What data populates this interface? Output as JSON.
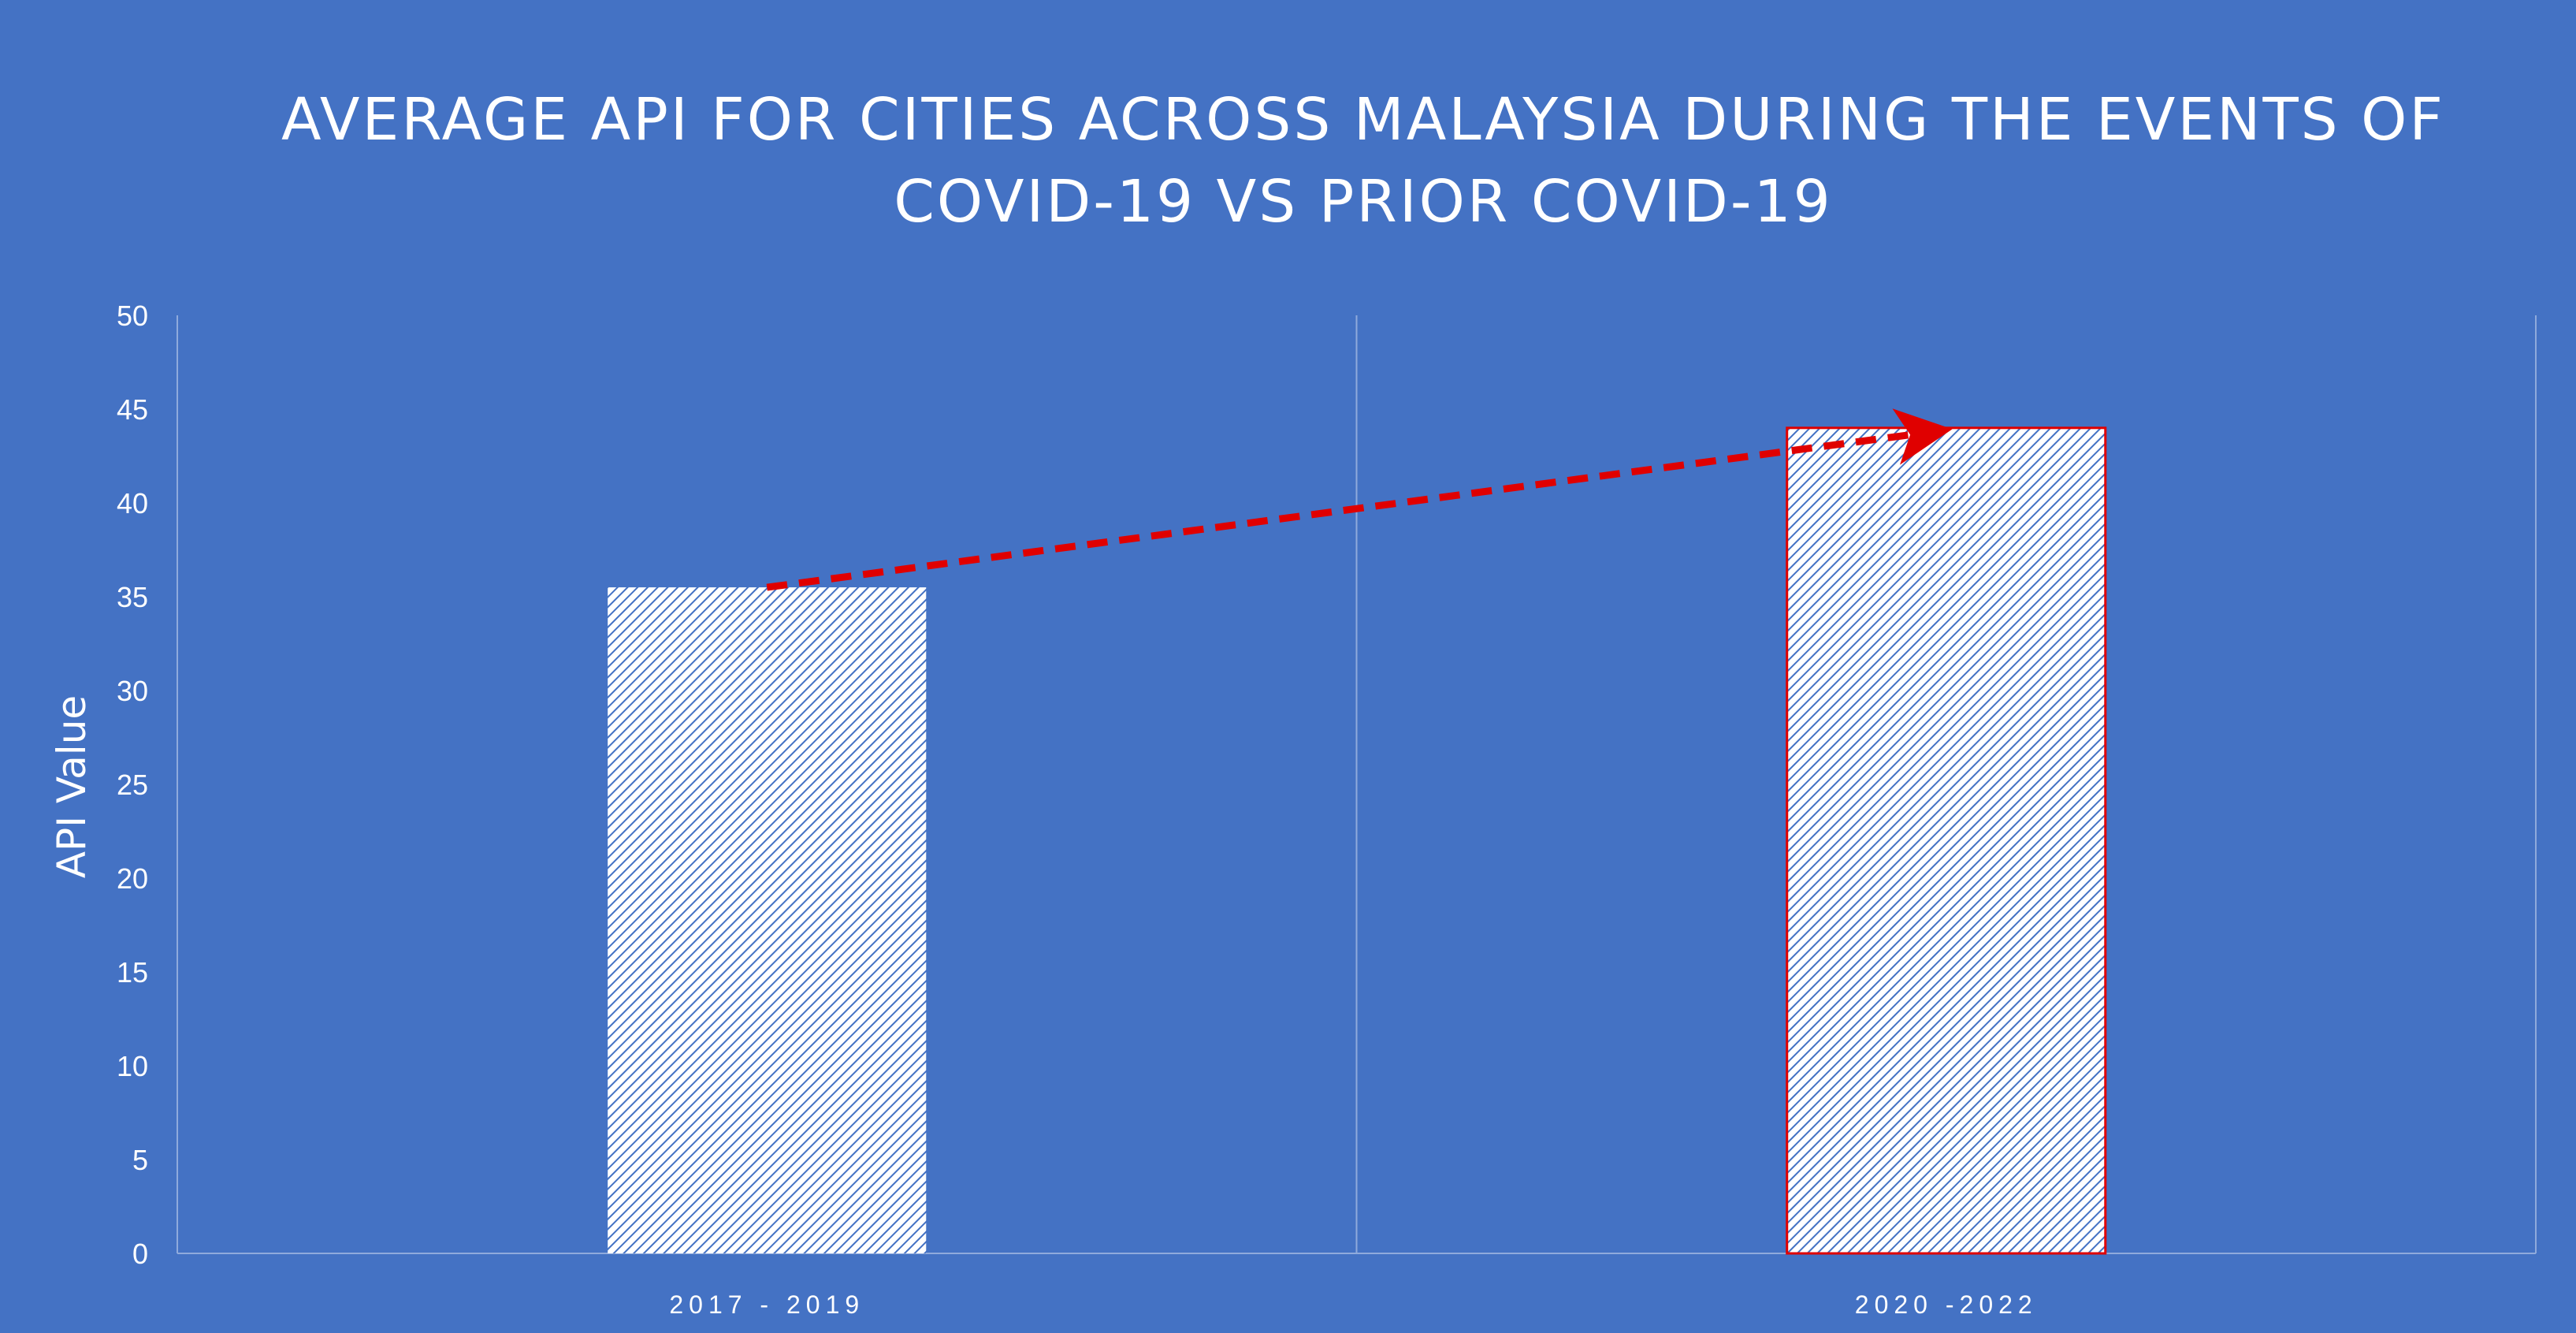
{
  "chart_data": {
    "type": "bar",
    "title": "AVERAGE API FOR CITIES ACROSS MALAYSIA DURING THE EVENTS OF COVID-19 VS PRIOR COVID-19",
    "xlabel": "",
    "ylabel": "API Value",
    "categories": [
      "2017 - 2019",
      "2020 -2022"
    ],
    "values": [
      35.5,
      44
    ],
    "ylim": [
      0,
      50
    ],
    "ytick_step": 5,
    "grid": "vertical category separators",
    "legend": "none",
    "bar_fill": "#ffffff",
    "hatch_color": "#4472C4",
    "highlight_outline": "#E00000",
    "annotation": {
      "type": "dashed-arrow",
      "from_category": "2017 - 2019",
      "to_category": "2020 -2022",
      "color": "#E00000"
    }
  },
  "colors": {
    "background": "#4472C4",
    "text": "#ffffff",
    "axis": "#8FAADC"
  }
}
